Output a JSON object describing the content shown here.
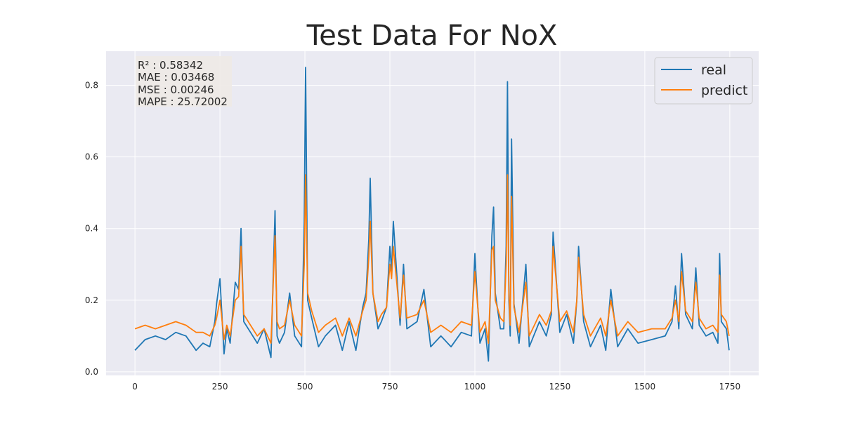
{
  "chart_data": {
    "type": "line",
    "title": "Test Data For NoX",
    "xlabel": "",
    "ylabel": "",
    "xlim": [
      -85,
      1835
    ],
    "ylim": [
      -0.01,
      0.895
    ],
    "x_ticks": [
      0,
      250,
      500,
      750,
      1000,
      1250,
      1500,
      1750
    ],
    "y_ticks": [
      0.0,
      0.2,
      0.4,
      0.6,
      0.8
    ],
    "x_tick_labels": [
      "0",
      "250",
      "500",
      "750",
      "1000",
      "1250",
      "1500",
      "1750"
    ],
    "y_tick_labels": [
      "0.0",
      "0.2",
      "0.4",
      "0.6",
      "0.8"
    ],
    "grid": true,
    "legend_position": "top-right",
    "stats": [
      "R² : 0.58342",
      "MAE : 0.03468",
      "MSE : 0.00246",
      "MAPE : 25.72002"
    ],
    "series": [
      {
        "name": "real",
        "color": "#1f77b4",
        "x": [
          0,
          30,
          60,
          90,
          120,
          150,
          180,
          200,
          220,
          235,
          240,
          250,
          262,
          270,
          280,
          295,
          305,
          312,
          320,
          340,
          360,
          380,
          400,
          412,
          418,
          425,
          440,
          455,
          470,
          490,
          498,
          502,
          508,
          520,
          540,
          560,
          590,
          610,
          630,
          650,
          670,
          680,
          688,
          692,
          700,
          715,
          725,
          740,
          750,
          755,
          760,
          780,
          790,
          800,
          830,
          850,
          870,
          900,
          930,
          960,
          990,
          1000,
          1005,
          1015,
          1030,
          1040,
          1050,
          1055,
          1060,
          1075,
          1085,
          1092,
          1096,
          1100,
          1104,
          1108,
          1115,
          1130,
          1150,
          1160,
          1190,
          1210,
          1225,
          1230,
          1250,
          1270,
          1290,
          1300,
          1305,
          1320,
          1340,
          1370,
          1385,
          1400,
          1420,
          1450,
          1480,
          1520,
          1560,
          1580,
          1590,
          1600,
          1608,
          1620,
          1640,
          1650,
          1660,
          1680,
          1700,
          1715,
          1720,
          1725,
          1740,
          1748
        ],
        "y": [
          0.06,
          0.09,
          0.1,
          0.09,
          0.11,
          0.1,
          0.06,
          0.08,
          0.07,
          0.14,
          0.19,
          0.26,
          0.05,
          0.12,
          0.08,
          0.25,
          0.23,
          0.4,
          0.14,
          0.11,
          0.08,
          0.12,
          0.04,
          0.45,
          0.1,
          0.08,
          0.11,
          0.22,
          0.1,
          0.07,
          0.42,
          0.85,
          0.2,
          0.15,
          0.07,
          0.1,
          0.13,
          0.06,
          0.14,
          0.06,
          0.18,
          0.22,
          0.37,
          0.54,
          0.22,
          0.12,
          0.14,
          0.18,
          0.35,
          0.28,
          0.42,
          0.13,
          0.3,
          0.12,
          0.14,
          0.23,
          0.07,
          0.1,
          0.07,
          0.11,
          0.1,
          0.33,
          0.24,
          0.08,
          0.12,
          0.03,
          0.38,
          0.46,
          0.22,
          0.12,
          0.12,
          0.35,
          0.81,
          0.2,
          0.1,
          0.65,
          0.19,
          0.08,
          0.3,
          0.07,
          0.14,
          0.1,
          0.16,
          0.39,
          0.11,
          0.16,
          0.08,
          0.2,
          0.35,
          0.14,
          0.07,
          0.13,
          0.06,
          0.23,
          0.07,
          0.12,
          0.08,
          0.09,
          0.1,
          0.14,
          0.24,
          0.12,
          0.33,
          0.16,
          0.12,
          0.29,
          0.13,
          0.1,
          0.11,
          0.08,
          0.33,
          0.14,
          0.12,
          0.06
        ]
      },
      {
        "name": "predict",
        "color": "#ff7f0e",
        "x": [
          0,
          30,
          60,
          90,
          120,
          150,
          180,
          200,
          220,
          235,
          240,
          250,
          262,
          270,
          280,
          295,
          305,
          312,
          320,
          340,
          360,
          380,
          400,
          412,
          418,
          425,
          440,
          455,
          470,
          490,
          498,
          502,
          508,
          520,
          540,
          560,
          590,
          610,
          630,
          650,
          670,
          680,
          688,
          692,
          700,
          715,
          725,
          740,
          750,
          755,
          760,
          780,
          790,
          800,
          830,
          850,
          870,
          900,
          930,
          960,
          990,
          1000,
          1005,
          1015,
          1030,
          1040,
          1050,
          1055,
          1060,
          1075,
          1085,
          1092,
          1096,
          1100,
          1104,
          1108,
          1115,
          1130,
          1150,
          1160,
          1190,
          1210,
          1225,
          1230,
          1250,
          1270,
          1290,
          1300,
          1305,
          1320,
          1340,
          1370,
          1385,
          1400,
          1420,
          1450,
          1480,
          1520,
          1560,
          1580,
          1590,
          1600,
          1608,
          1620,
          1640,
          1650,
          1660,
          1680,
          1700,
          1715,
          1720,
          1725,
          1740,
          1748
        ],
        "y": [
          0.12,
          0.13,
          0.12,
          0.13,
          0.14,
          0.13,
          0.11,
          0.11,
          0.1,
          0.13,
          0.15,
          0.2,
          0.09,
          0.13,
          0.1,
          0.2,
          0.21,
          0.35,
          0.16,
          0.13,
          0.1,
          0.12,
          0.08,
          0.38,
          0.14,
          0.12,
          0.13,
          0.2,
          0.13,
          0.1,
          0.3,
          0.55,
          0.22,
          0.17,
          0.11,
          0.13,
          0.15,
          0.1,
          0.15,
          0.1,
          0.17,
          0.2,
          0.32,
          0.42,
          0.22,
          0.14,
          0.16,
          0.18,
          0.3,
          0.26,
          0.35,
          0.15,
          0.27,
          0.15,
          0.16,
          0.2,
          0.11,
          0.13,
          0.11,
          0.14,
          0.13,
          0.28,
          0.22,
          0.11,
          0.14,
          0.08,
          0.34,
          0.35,
          0.2,
          0.15,
          0.14,
          0.3,
          0.55,
          0.22,
          0.13,
          0.49,
          0.18,
          0.11,
          0.25,
          0.1,
          0.16,
          0.13,
          0.17,
          0.35,
          0.14,
          0.17,
          0.11,
          0.2,
          0.32,
          0.16,
          0.1,
          0.15,
          0.1,
          0.2,
          0.1,
          0.14,
          0.11,
          0.12,
          0.12,
          0.15,
          0.2,
          0.14,
          0.28,
          0.17,
          0.14,
          0.25,
          0.15,
          0.12,
          0.13,
          0.11,
          0.27,
          0.16,
          0.14,
          0.1
        ]
      }
    ]
  }
}
